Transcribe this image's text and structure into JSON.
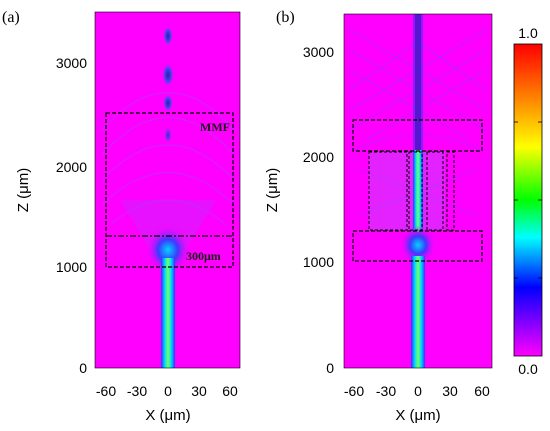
{
  "panels": [
    {
      "label": "(a)",
      "y_label": "Z (μm)",
      "x_label": "X (μm)",
      "y_ticks": [
        "0",
        "1000",
        "2000",
        "3000"
      ],
      "x_ticks": [
        "-60",
        "-30",
        "0",
        "30",
        "60"
      ],
      "annotations": [
        "MMF",
        "300μm"
      ]
    },
    {
      "label": "(b)",
      "y_label": "Z (μm)",
      "x_label": "X (μm)",
      "y_ticks": [
        "0",
        "1000",
        "2000",
        "3000"
      ],
      "x_ticks": [
        "-60",
        "-30",
        "0",
        "30",
        "60"
      ]
    }
  ],
  "colorbar": {
    "max_label": "1.0",
    "min_label": "0.0",
    "colors": [
      "#ff0000",
      "#ff8000",
      "#ffff00",
      "#00ff00",
      "#00ffff",
      "#0000ff",
      "#ff00ff"
    ]
  },
  "colors": {
    "background_field": "#ff00ff",
    "beam_core": "#00e676",
    "boxes": "#000000"
  }
}
